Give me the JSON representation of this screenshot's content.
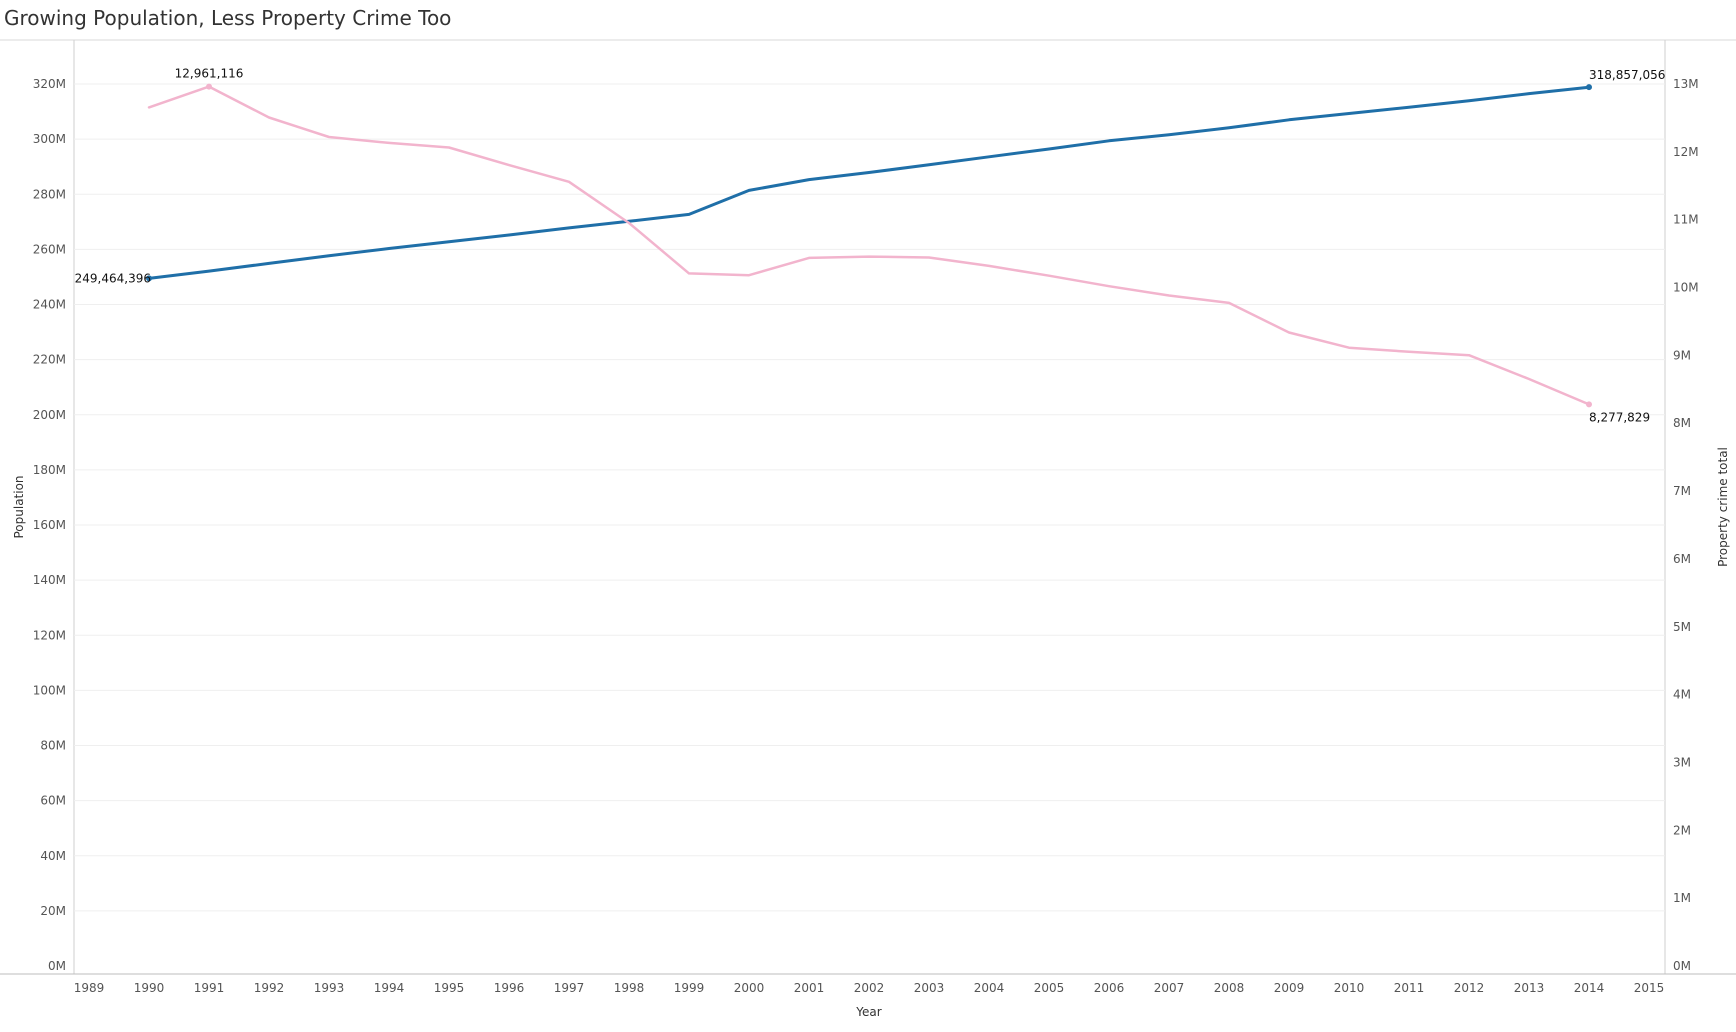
{
  "chart_data": {
    "type": "line",
    "title": "Growing Population, Less Property Crime Too",
    "xlabel": "Year",
    "ylabel": "Population",
    "y2label": "Property crime total",
    "xlim": [
      1989,
      2015
    ],
    "x_ticks": [
      "1989",
      "1990",
      "1991",
      "1992",
      "1993",
      "1994",
      "1995",
      "1996",
      "1997",
      "1998",
      "1999",
      "2000",
      "2001",
      "2002",
      "2003",
      "2004",
      "2005",
      "2006",
      "2007",
      "2008",
      "2009",
      "2010",
      "2011",
      "2012",
      "2013",
      "2014",
      "2015"
    ],
    "ylim": [
      0,
      335000000
    ],
    "y_ticks": [
      {
        "value": 0,
        "label": "0M"
      },
      {
        "value": 20000000,
        "label": "20M"
      },
      {
        "value": 40000000,
        "label": "40M"
      },
      {
        "value": 60000000,
        "label": "60M"
      },
      {
        "value": 80000000,
        "label": "80M"
      },
      {
        "value": 100000000,
        "label": "100M"
      },
      {
        "value": 120000000,
        "label": "120M"
      },
      {
        "value": 140000000,
        "label": "140M"
      },
      {
        "value": 160000000,
        "label": "160M"
      },
      {
        "value": 180000000,
        "label": "180M"
      },
      {
        "value": 200000000,
        "label": "200M"
      },
      {
        "value": 220000000,
        "label": "220M"
      },
      {
        "value": 240000000,
        "label": "240M"
      },
      {
        "value": 260000000,
        "label": "260M"
      },
      {
        "value": 280000000,
        "label": "280M"
      },
      {
        "value": 300000000,
        "label": "300M"
      },
      {
        "value": 320000000,
        "label": "320M"
      }
    ],
    "y2lim": [
      0,
      13600000
    ],
    "y2_ticks": [
      {
        "value": 0,
        "label": "0M"
      },
      {
        "value": 1000000,
        "label": "1M"
      },
      {
        "value": 2000000,
        "label": "2M"
      },
      {
        "value": 3000000,
        "label": "3M"
      },
      {
        "value": 4000000,
        "label": "4M"
      },
      {
        "value": 5000000,
        "label": "5M"
      },
      {
        "value": 6000000,
        "label": "6M"
      },
      {
        "value": 7000000,
        "label": "7M"
      },
      {
        "value": 8000000,
        "label": "8M"
      },
      {
        "value": 9000000,
        "label": "9M"
      },
      {
        "value": 10000000,
        "label": "10M"
      },
      {
        "value": 11000000,
        "label": "11M"
      },
      {
        "value": 12000000,
        "label": "12M"
      },
      {
        "value": 13000000,
        "label": "13M"
      }
    ],
    "grid": true,
    "series": [
      {
        "name": "Population",
        "axis": "left",
        "color": "#1f6fa8",
        "x": [
          1990,
          1991,
          1992,
          1993,
          1994,
          1995,
          1996,
          1997,
          1998,
          1999,
          2000,
          2001,
          2002,
          2003,
          2004,
          2005,
          2006,
          2007,
          2008,
          2009,
          2010,
          2011,
          2012,
          2013,
          2014
        ],
        "values": [
          249464396,
          252100000,
          254900000,
          257700000,
          260300000,
          262800000,
          265200000,
          267800000,
          270200000,
          272700000,
          281400000,
          285300000,
          287900000,
          290700000,
          293600000,
          296400000,
          299400000,
          301600000,
          304100000,
          307000000,
          309300000,
          311600000,
          313900000,
          316500000,
          318857056
        ],
        "labels": [
          {
            "x": 1990,
            "text": "249,464,396",
            "position": "left"
          },
          {
            "x": 2014,
            "text": "318,857,056",
            "position": "right-above"
          }
        ],
        "markers_at": [
          1990,
          2014
        ]
      },
      {
        "name": "Property crime total",
        "axis": "right",
        "color": "#f2b4cd",
        "x": [
          1990,
          1991,
          1992,
          1993,
          1994,
          1995,
          1996,
          1997,
          1998,
          1999,
          2000,
          2001,
          2002,
          2003,
          2004,
          2005,
          2006,
          2007,
          2008,
          2009,
          2010,
          2011,
          2012,
          2013,
          2014
        ],
        "values": [
          12655486,
          12961116,
          12505917,
          12218777,
          12131873,
          12063935,
          11805323,
          11558475,
          10951827,
          10208334,
          10182584,
          10437189,
          10455277,
          10442862,
          10319386,
          10174754,
          10019601,
          9882212,
          9774152,
          9337060,
          9112625,
          9052743,
          9001992,
          8651892,
          8277829
        ],
        "labels": [
          {
            "x": 1991,
            "text": "12,961,116",
            "position": "above"
          },
          {
            "x": 2014,
            "text": "8,277,829",
            "position": "below"
          }
        ],
        "markers_at": [
          1991,
          2014
        ]
      }
    ]
  }
}
